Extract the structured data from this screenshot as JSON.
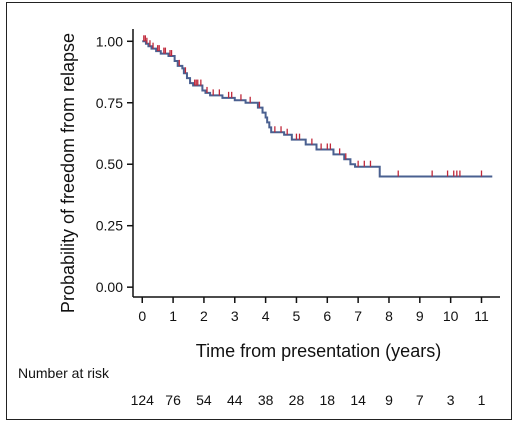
{
  "chart_data": {
    "type": "line",
    "xlabel": "Time from presentation (years)",
    "ylabel": "Probability of freedom from relapse",
    "xlim": [
      -0.3,
      11.6
    ],
    "ylim": [
      -0.04,
      1.05
    ],
    "x_ticks": [
      0,
      1,
      2,
      3,
      4,
      5,
      6,
      7,
      8,
      9,
      10,
      11
    ],
    "y_ticks": [
      "0.00",
      "0.25",
      "0.50",
      "0.75",
      "1.00"
    ],
    "grid": false,
    "line_color": "#4a6090",
    "censor_color": "#c0283a",
    "series": [
      {
        "step_points": [
          [
            0,
            1.0
          ],
          [
            0.12,
            0.99
          ],
          [
            0.2,
            0.98
          ],
          [
            0.3,
            0.97
          ],
          [
            0.45,
            0.96
          ],
          [
            0.6,
            0.95
          ],
          [
            0.85,
            0.94
          ],
          [
            1.05,
            0.92
          ],
          [
            1.15,
            0.9
          ],
          [
            1.3,
            0.89
          ],
          [
            1.35,
            0.87
          ],
          [
            1.45,
            0.85
          ],
          [
            1.55,
            0.83
          ],
          [
            1.65,
            0.82
          ],
          [
            1.95,
            0.8
          ],
          [
            2.05,
            0.79
          ],
          [
            2.2,
            0.78
          ],
          [
            2.6,
            0.77
          ],
          [
            3.0,
            0.76
          ],
          [
            3.35,
            0.75
          ],
          [
            3.75,
            0.73
          ],
          [
            3.9,
            0.71
          ],
          [
            4.0,
            0.69
          ],
          [
            4.05,
            0.67
          ],
          [
            4.12,
            0.65
          ],
          [
            4.18,
            0.63
          ],
          [
            4.6,
            0.62
          ],
          [
            4.85,
            0.6
          ],
          [
            5.3,
            0.58
          ],
          [
            5.65,
            0.56
          ],
          [
            6.2,
            0.54
          ],
          [
            6.55,
            0.52
          ],
          [
            6.75,
            0.5
          ],
          [
            6.9,
            0.49
          ],
          [
            7.7,
            0.45
          ],
          [
            11.35,
            0.45
          ]
        ],
        "censor_times": [
          0.05,
          0.1,
          0.15,
          0.25,
          0.35,
          0.5,
          0.55,
          0.7,
          0.75,
          0.9,
          0.95,
          1.2,
          1.4,
          1.7,
          1.75,
          1.8,
          1.9,
          2.1,
          2.3,
          2.5,
          2.8,
          2.9,
          3.2,
          3.5,
          3.8,
          4.3,
          4.5,
          4.7,
          5.0,
          5.1,
          5.5,
          5.8,
          6.0,
          6.1,
          6.4,
          6.6,
          7.0,
          7.2,
          7.4,
          8.3,
          9.4,
          9.9,
          10.1,
          10.2,
          10.3,
          11.0
        ]
      }
    ],
    "number_at_risk": {
      "title": "Number at risk",
      "values": [
        "124",
        "76",
        "54",
        "44",
        "38",
        "28",
        "18",
        "14",
        "9",
        "7",
        "3",
        "1"
      ]
    }
  }
}
